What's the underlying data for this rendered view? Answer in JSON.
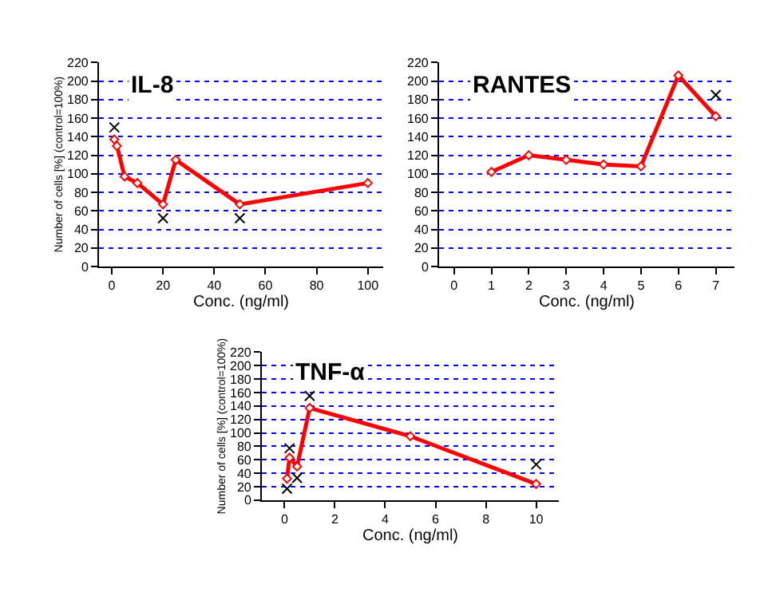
{
  "chart_data": [
    {
      "type": "line",
      "title": "IL-8",
      "xlabel": "Conc. (ng/ml)",
      "ylabel": "Number of cells [%] (control=100%)",
      "xlim": [
        -5,
        106
      ],
      "xticks": [
        0,
        20,
        40,
        60,
        80,
        100
      ],
      "ylim": [
        0,
        220
      ],
      "yticks": [
        0,
        20,
        40,
        60,
        80,
        100,
        120,
        140,
        160,
        180,
        200,
        220
      ],
      "grid": "y",
      "marker": "diamond",
      "series": [
        {
          "color": "#ff0000",
          "x": [
            1,
            2,
            5,
            10,
            20,
            25,
            50,
            100
          ],
          "values": [
            137,
            130,
            97,
            90,
            67,
            115,
            67,
            90
          ]
        },
        {
          "type": "scatter",
          "marker": "cross",
          "color": "#000000",
          "x": [
            1,
            20,
            50
          ],
          "values": [
            150,
            52,
            52
          ]
        }
      ]
    },
    {
      "type": "line",
      "title": "RANTES",
      "xlabel": "Conc. (ng/ml)",
      "xlim": [
        -0.4,
        7.5
      ],
      "xticks": [
        0,
        1,
        2,
        3,
        4,
        5,
        6,
        7
      ],
      "ylim": [
        0,
        220
      ],
      "yticks": [
        0,
        20,
        40,
        60,
        80,
        100,
        120,
        140,
        160,
        180,
        200,
        220
      ],
      "grid": "y",
      "marker": "diamond",
      "series": [
        {
          "color": "#ff0000",
          "x": [
            1,
            2,
            3,
            4,
            5,
            6,
            7
          ],
          "values": [
            102,
            120,
            115,
            110,
            108,
            206,
            162
          ]
        },
        {
          "type": "scatter",
          "marker": "cross",
          "color": "#000000",
          "x": [
            7
          ],
          "values": [
            185
          ]
        }
      ]
    },
    {
      "type": "line",
      "title": "TNF-α",
      "xlabel": "Conc. (ng/ml)",
      "ylabel": "Number of cells [%] (control=100%)",
      "xlim": [
        -0.9,
        10.9
      ],
      "xticks": [
        0,
        2,
        4,
        6,
        8,
        10
      ],
      "ylim": [
        0,
        220
      ],
      "yticks": [
        0,
        20,
        40,
        60,
        80,
        100,
        120,
        140,
        160,
        180,
        200,
        220
      ],
      "grid": "y",
      "marker": "diamond",
      "series": [
        {
          "color": "#ff0000",
          "x": [
            0.1,
            0.2,
            0.5,
            1,
            5,
            10
          ],
          "values": [
            32,
            63,
            50,
            137,
            95,
            24
          ]
        },
        {
          "type": "scatter",
          "marker": "cross",
          "color": "#000000",
          "x": [
            0.1,
            0.2,
            0.5,
            1,
            10
          ],
          "values": [
            17,
            77,
            33,
            155,
            53
          ]
        }
      ]
    }
  ]
}
